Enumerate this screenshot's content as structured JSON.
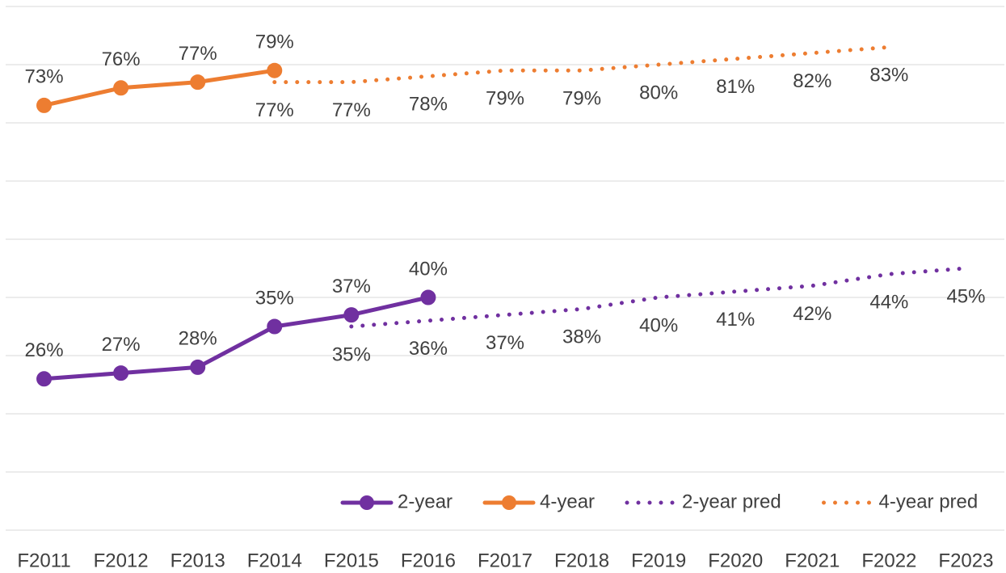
{
  "chart_data": {
    "type": "line",
    "categories": [
      "F2011",
      "F2012",
      "F2013",
      "F2014",
      "F2015",
      "F2016",
      "F2017",
      "F2018",
      "F2019",
      "F2020",
      "F2021",
      "F2022",
      "F2023"
    ],
    "ylim": [
      0,
      90
    ],
    "yticks": [
      0,
      10,
      20,
      30,
      40,
      50,
      60,
      70,
      80,
      90
    ],
    "grid": true,
    "legend": "bottom-right",
    "series": [
      {
        "name": "2-year",
        "color": "#7030a0",
        "line_style": "solid",
        "marker": true,
        "values": [
          26,
          27,
          28,
          35,
          37,
          40,
          null,
          null,
          null,
          null,
          null,
          null,
          null
        ],
        "value_labels": [
          "26%",
          "27%",
          "28%",
          "35%",
          "37%",
          "40%",
          null,
          null,
          null,
          null,
          null,
          null,
          null
        ]
      },
      {
        "name": "4-year",
        "color": "#ed7d31",
        "line_style": "solid",
        "marker": true,
        "values": [
          73,
          76,
          77,
          79,
          null,
          null,
          null,
          null,
          null,
          null,
          null,
          null,
          null
        ],
        "value_labels": [
          "73%",
          "76%",
          "77%",
          "79%",
          null,
          null,
          null,
          null,
          null,
          null,
          null,
          null,
          null
        ]
      },
      {
        "name": "2-year pred",
        "color": "#7030a0",
        "line_style": "dotted",
        "marker": false,
        "values": [
          null,
          null,
          null,
          null,
          35,
          36,
          37,
          38,
          40,
          41,
          42,
          44,
          45
        ],
        "value_labels": [
          null,
          null,
          null,
          null,
          "35%",
          "36%",
          "37%",
          "38%",
          "40%",
          "41%",
          "42%",
          "44%",
          "45%"
        ]
      },
      {
        "name": "4-year pred",
        "color": "#ed7d31",
        "line_style": "dotted",
        "marker": false,
        "values": [
          null,
          null,
          null,
          77,
          77,
          78,
          79,
          79,
          80,
          81,
          82,
          83,
          null
        ],
        "value_labels": [
          null,
          null,
          null,
          "77%",
          "77%",
          "78%",
          "79%",
          "79%",
          "80%",
          "81%",
          "82%",
          "83%",
          null
        ]
      }
    ]
  }
}
